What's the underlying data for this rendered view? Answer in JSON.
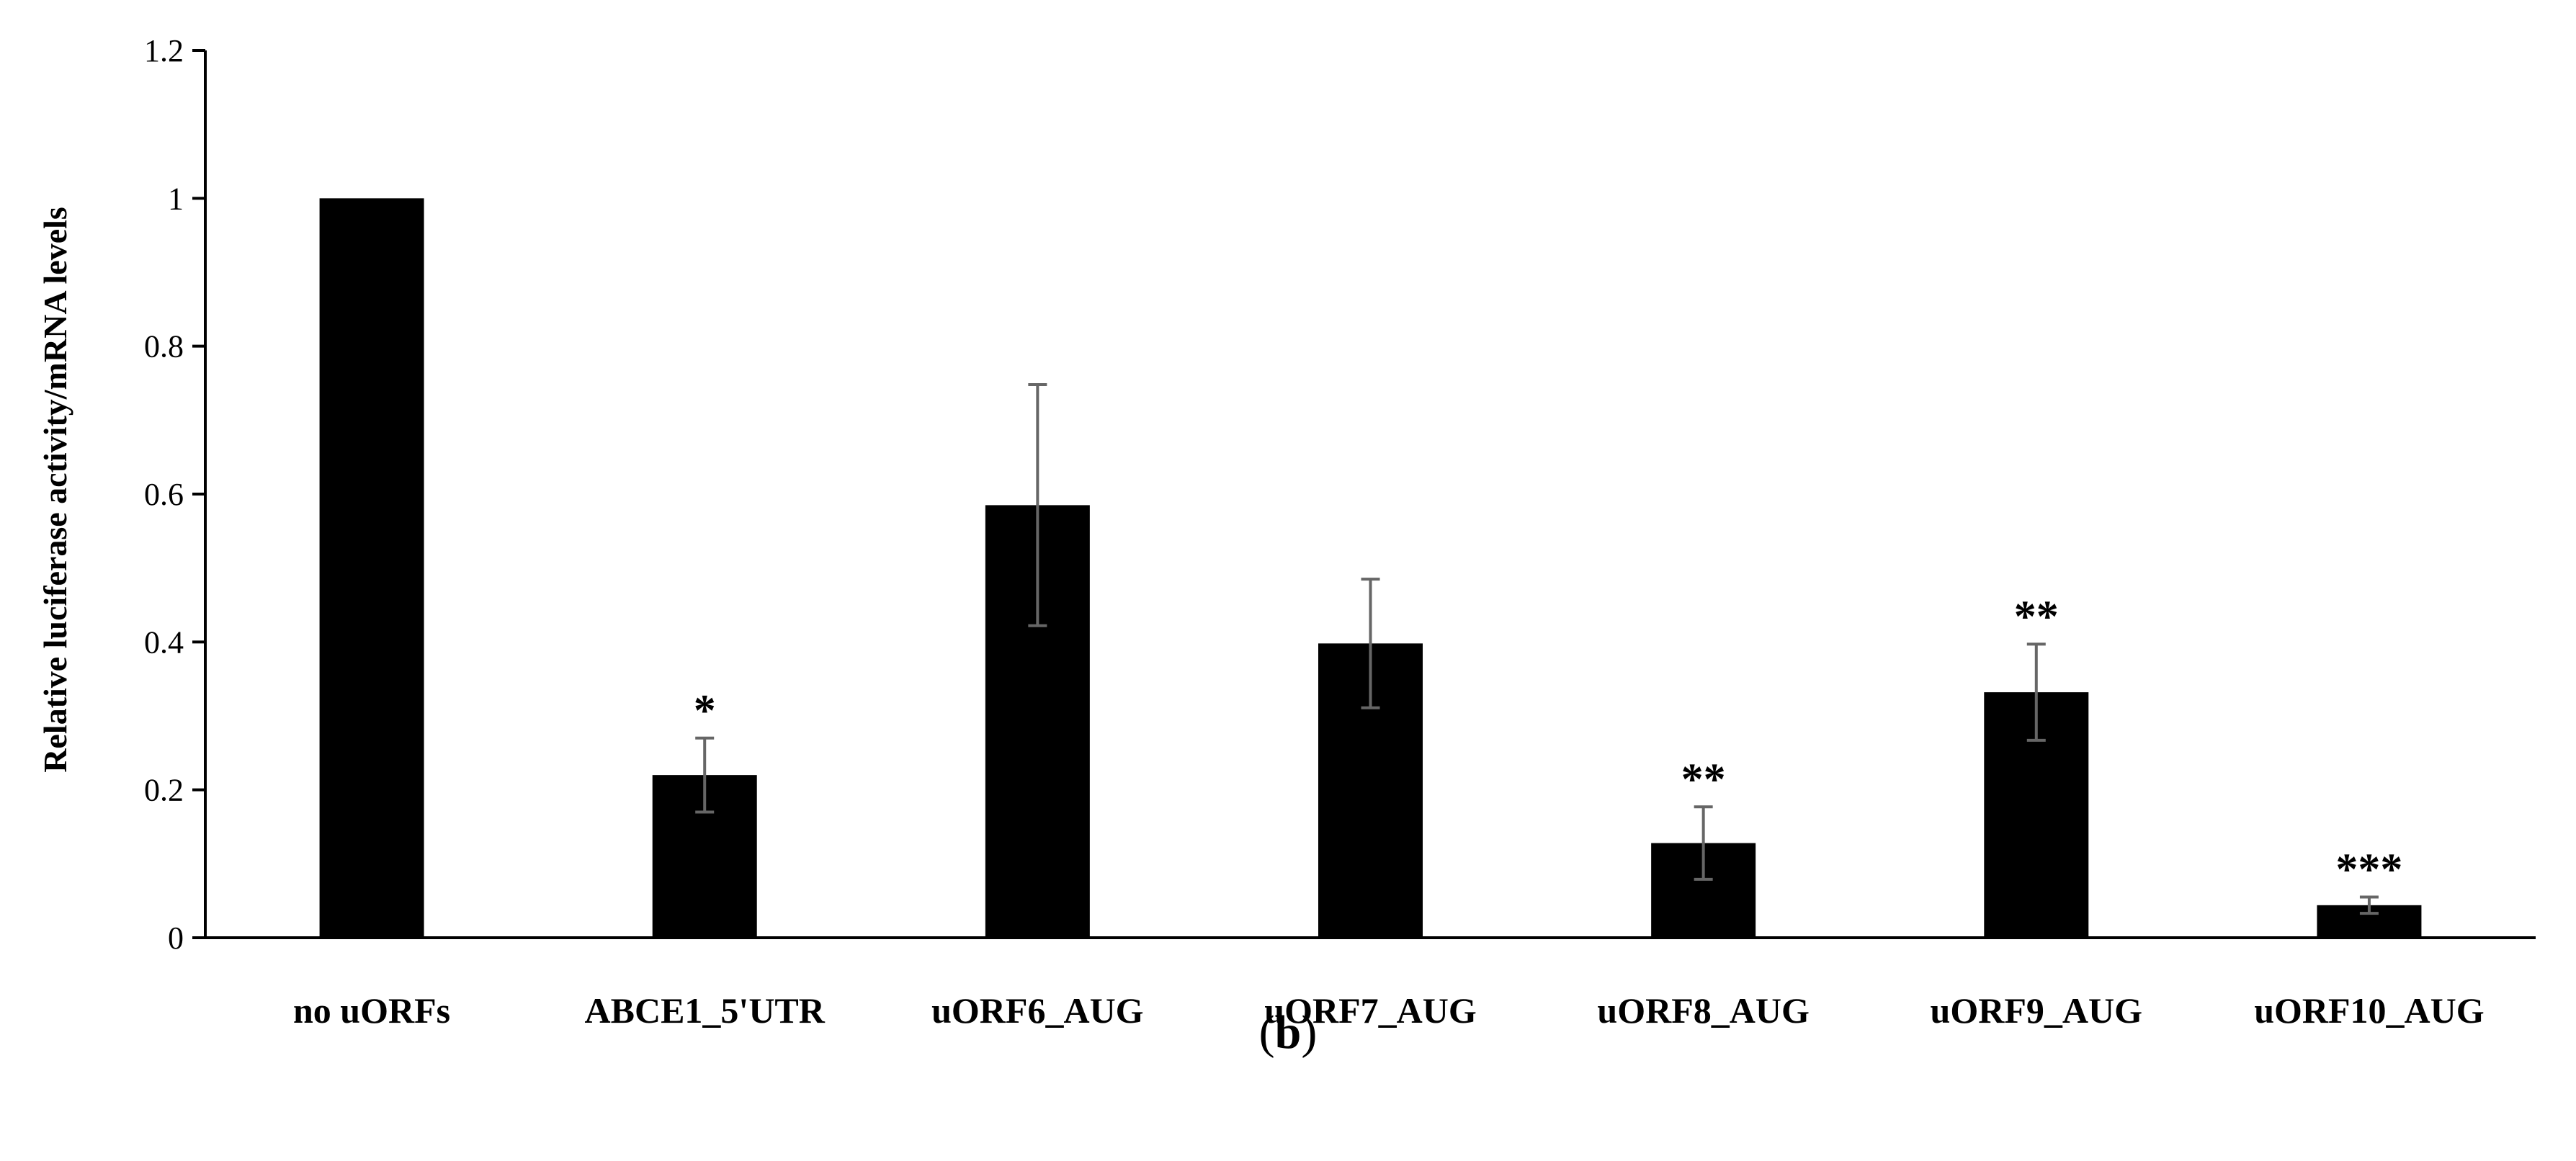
{
  "chart_data": {
    "type": "bar",
    "title": "",
    "xlabel": "",
    "ylabel": "Relative luciferase activity/mRNA levels",
    "ylim": [
      0,
      1.2
    ],
    "yticks": [
      "0",
      "0.2",
      "0.4",
      "0.6",
      "0.8",
      "1",
      "1.2"
    ],
    "categories": [
      "no uORFs",
      "ABCE1_5'UTR",
      "uORF6_AUG",
      "uORF7_AUG",
      "uORF8_AUG",
      "uORF9_AUG",
      "uORF10_AUG"
    ],
    "values": [
      1.0,
      0.22,
      0.585,
      0.398,
      0.128,
      0.332,
      0.044
    ],
    "errors": [
      0,
      0.05,
      0.163,
      0.087,
      0.049,
      0.065,
      0.011
    ],
    "significance": [
      "",
      "*",
      "",
      "",
      "**",
      "**",
      "***"
    ],
    "bar_color": "#000000",
    "grid": false,
    "legend": false
  },
  "panel_label": {
    "open": "(",
    "letter": "b",
    "close": ")"
  }
}
